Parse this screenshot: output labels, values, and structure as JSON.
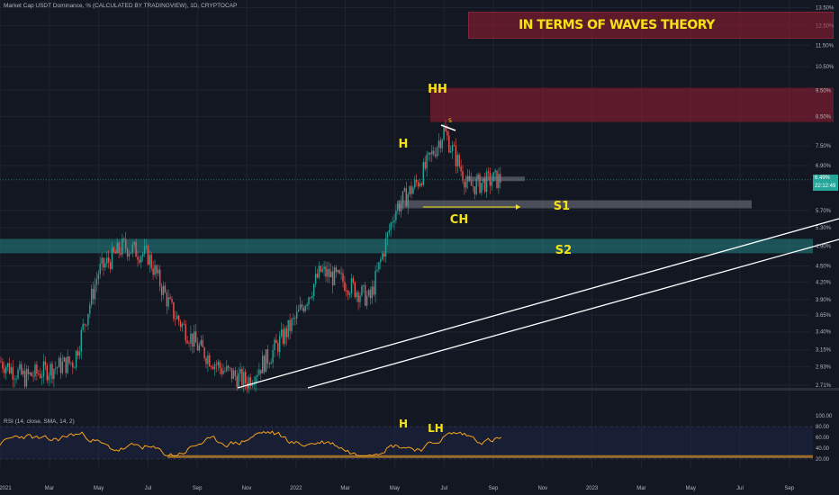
{
  "header": {
    "title": "Market Cap USDT Dominance, % (CALCULATED BY TRADINGVIEW), 1D, CRYPTOCAP"
  },
  "banner": {
    "text": "IN TERMS OF WAVES THEORY"
  },
  "price_tag": {
    "value": "6.49%",
    "countdown": "22:12:49"
  },
  "rsi": {
    "label": "RSI (14, close, SMA, 14, 2)"
  },
  "annotations": {
    "hh": "HH",
    "h": "H",
    "ch": "CH",
    "s_small": "S",
    "s1": "S1",
    "s2": "S2",
    "rsi_h": "H",
    "rsi_lh": "LH"
  },
  "colors": {
    "background": "#131722",
    "bull": "#26a69a",
    "bear": "#ef5350",
    "annotation": "#f5e216",
    "rsi_line": "#f7a21b",
    "resistance_zone": "#9b1e32",
    "support_zone": "#26a6a6",
    "rsi_floor_zone": "#b07a2a"
  },
  "chart_data": [
    {
      "type": "candlestick",
      "price_axis": [
        "13.50%",
        "12.50%",
        "11.50%",
        "10.50%",
        "9.50%",
        "8.50%",
        "7.50%",
        "6.90%",
        "5.70%",
        "5.30%",
        "4.90%",
        "4.50%",
        "4.20%",
        "3.90%",
        "3.65%",
        "3.40%",
        "3.15%",
        "2.93%",
        "2.71%"
      ],
      "time_axis": [
        "2021",
        "Mar",
        "May",
        "Jul",
        "Sep",
        "Nov",
        "2022",
        "Mar",
        "May",
        "Jul",
        "Sep",
        "Nov",
        "2023",
        "Mar",
        "May",
        "Jul",
        "Sep"
      ],
      "scale": "log",
      "last_value": 6.49,
      "approx_close_path": [
        [
          "2021-01",
          3.0
        ],
        [
          "2021-02",
          2.8
        ],
        [
          "2021-03",
          2.9
        ],
        [
          "2021-04",
          3.0
        ],
        [
          "2021-05",
          4.4
        ],
        [
          "2021-06",
          4.9
        ],
        [
          "2021-07",
          4.7
        ],
        [
          "2021-08",
          3.7
        ],
        [
          "2021-09",
          3.2
        ],
        [
          "2021-10",
          2.9
        ],
        [
          "2021-11",
          2.75
        ],
        [
          "2021-12",
          3.1
        ],
        [
          "2022-01",
          3.6
        ],
        [
          "2022-02",
          4.4
        ],
        [
          "2022-03",
          4.2
        ],
        [
          "2022-04",
          3.9
        ],
        [
          "2022-05",
          5.7
        ],
        [
          "2022-06",
          6.5
        ],
        [
          "2022-07",
          8.0
        ],
        [
          "2022-08",
          6.3
        ],
        [
          "2022-09",
          6.5
        ]
      ],
      "annotations": {
        "resistance_zone_pct": [
          8.3,
          9.6
        ],
        "banner_zone_pct": [
          11.9,
          13.0
        ],
        "s1_zone_pct": [
          5.75,
          5.95
        ],
        "s2_zone_pct": [
          4.75,
          5.05
        ],
        "small_resistance_pct": 6.5
      }
    },
    {
      "type": "line",
      "name": "RSI",
      "axis": [
        "100.00",
        "80.00",
        "60.00",
        "40.00",
        "20.00"
      ],
      "guide_levels": [
        80,
        20
      ],
      "floor_zone": [
        22,
        27
      ]
    }
  ]
}
